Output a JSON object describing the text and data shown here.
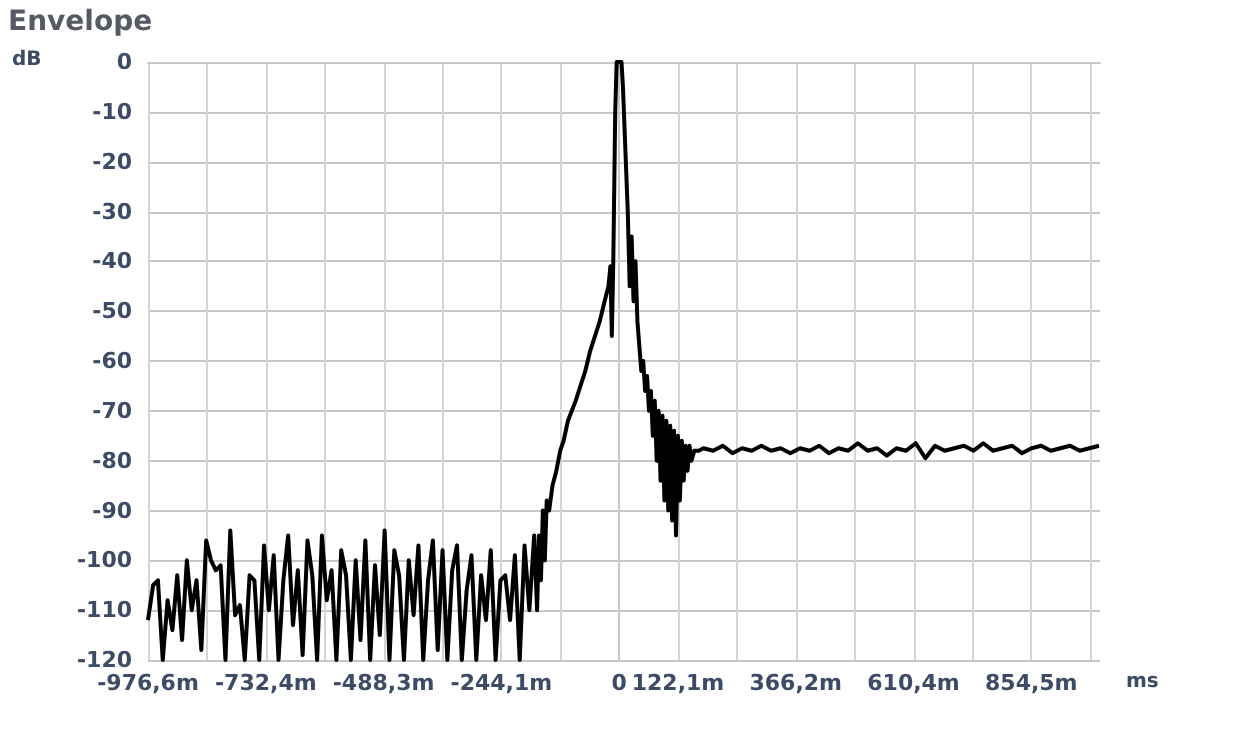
{
  "chart_data": {
    "type": "line",
    "title": "Envelope",
    "ylabel": "dB",
    "xlabel": "ms",
    "x": [
      -976.6,
      -966,
      -956,
      -946,
      -936,
      -926,
      -916,
      -906,
      -896,
      -886,
      -876,
      -866,
      -856,
      -846,
      -836,
      -826,
      -816,
      -806,
      -796,
      -786,
      -776,
      -766,
      -756,
      -746,
      -736,
      -726,
      -716,
      -706,
      -696,
      -686,
      -676,
      -666,
      -656,
      -646,
      -636,
      -626,
      -616,
      -606,
      -596,
      -586,
      -576,
      -566,
      -556,
      -546,
      -536,
      -526,
      -516,
      -506,
      -496,
      -486,
      -476,
      -466,
      -456,
      -446,
      -436,
      -426,
      -416,
      -406,
      -396,
      -386,
      -376,
      -366,
      -356,
      -346,
      -336,
      -326,
      -316,
      -306,
      -296,
      -286,
      -276,
      -266,
      -256,
      -246,
      -236,
      -226,
      -216,
      -206,
      -196,
      -186,
      -176,
      -170,
      -166,
      -162,
      -158,
      -154,
      -150,
      -145,
      -138,
      -130,
      -122,
      -115,
      -106,
      -98,
      -90,
      -80,
      -70,
      -60,
      -50,
      -40,
      -30,
      -22,
      -18,
      -15,
      -12,
      -8,
      -5,
      0,
      5,
      8,
      14,
      18,
      22,
      26,
      30,
      34,
      38,
      42,
      46,
      50,
      54,
      58,
      62,
      66,
      70,
      74,
      78,
      82,
      86,
      90,
      94,
      98,
      102,
      106,
      110,
      114,
      118,
      122,
      126,
      130,
      134,
      138,
      142,
      146,
      150,
      156,
      165,
      175,
      195,
      215,
      235,
      255,
      275,
      295,
      315,
      335,
      355,
      375,
      395,
      415,
      435,
      455,
      475,
      495,
      515,
      535,
      555,
      575,
      595,
      615,
      635,
      655,
      675,
      695,
      715,
      735,
      755,
      775,
      795,
      815,
      835,
      855,
      875,
      895,
      915,
      935,
      955,
      975,
      995
    ],
    "values": [
      -112,
      -105,
      -104,
      -120,
      -108,
      -114,
      -103,
      -116,
      -100,
      -110,
      -104,
      -118,
      -96,
      -100,
      -102,
      -101,
      -120,
      -94,
      -111,
      -109,
      -120,
      -103,
      -104,
      -120,
      -97,
      -110,
      -99,
      -120,
      -104,
      -95,
      -113,
      -102,
      -119,
      -96,
      -103,
      -120,
      -95,
      -108,
      -102,
      -120,
      -98,
      -103,
      -120,
      -100,
      -116,
      -96,
      -120,
      -101,
      -115,
      -94,
      -120,
      -98,
      -103,
      -120,
      -100,
      -111,
      -97,
      -120,
      -104,
      -96,
      -118,
      -98,
      -120,
      -102,
      -97,
      -120,
      -106,
      -99,
      -120,
      -103,
      -112,
      -98,
      -120,
      -104,
      -103,
      -112,
      -99,
      -120,
      -97,
      -110,
      -95,
      -110,
      -95,
      -104,
      -90,
      -100,
      -88,
      -90,
      -85,
      -82,
      -78,
      -76,
      -72,
      -70,
      -68,
      -65,
      -62,
      -58,
      -55,
      -52,
      -48,
      -45,
      -41,
      -55,
      -40,
      -10,
      0,
      0,
      0,
      -5,
      -20,
      -30,
      -45,
      -35,
      -48,
      -40,
      -52,
      -57,
      -62,
      -60,
      -66,
      -63,
      -70,
      -66,
      -75,
      -68,
      -80,
      -70,
      -84,
      -71,
      -88,
      -72,
      -90,
      -73,
      -92,
      -74,
      -95,
      -75,
      -88,
      -76,
      -84,
      -77,
      -82,
      -77,
      -80,
      -78,
      -78,
      -77.5,
      -78,
      -77,
      -78.5,
      -77.5,
      -78,
      -77,
      -78,
      -77.5,
      -78.5,
      -77.5,
      -78,
      -77,
      -78.5,
      -77.5,
      -78,
      -76.5,
      -78,
      -77.5,
      -79,
      -77.5,
      -78,
      -76.5,
      -79.5,
      -77,
      -78,
      -77.5,
      -77,
      -78,
      -76.5,
      -78,
      -77.5,
      -77,
      -78.5,
      -77.5,
      -77,
      -78,
      -77.5,
      -77,
      -78,
      -77.5,
      -77
    ],
    "color": "#000000",
    "marker": "none",
    "line_style": "solid",
    "grid": true,
    "xlim": [
      -976.6,
      997
    ],
    "xticks": [
      {
        "value": -976.6,
        "label": "-976,6m"
      },
      {
        "value": -854.5,
        "label": null
      },
      {
        "value": -732.4,
        "label": "-732,4m"
      },
      {
        "value": -610.4,
        "label": null
      },
      {
        "value": -488.3,
        "label": "-488,3m"
      },
      {
        "value": -366.2,
        "label": null
      },
      {
        "value": -244.1,
        "label": "-244,1m"
      },
      {
        "value": -122.1,
        "label": null
      },
      {
        "value": 0,
        "label": "0"
      },
      {
        "value": 122.1,
        "label": "122,1m"
      },
      {
        "value": 244.1,
        "label": null
      },
      {
        "value": 366.2,
        "label": "366,2m"
      },
      {
        "value": 488.3,
        "label": null
      },
      {
        "value": 610.4,
        "label": "610,4m"
      },
      {
        "value": 732.4,
        "label": null
      },
      {
        "value": 854.5,
        "label": "854,5m"
      },
      {
        "value": 976.6,
        "label": null
      }
    ],
    "ylim": [
      -120,
      0
    ],
    "yticks": [
      0,
      -10,
      -20,
      -30,
      -40,
      -50,
      -60,
      -70,
      -80,
      -90,
      -100,
      -110,
      -120
    ]
  }
}
